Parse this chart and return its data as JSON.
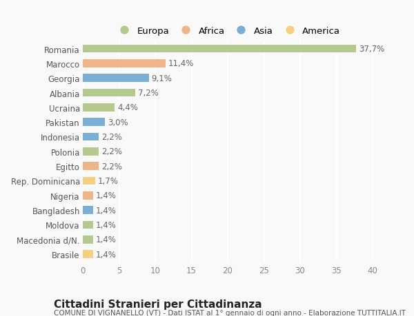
{
  "countries": [
    "Romania",
    "Marocco",
    "Georgia",
    "Albania",
    "Ucraina",
    "Pakistan",
    "Indonesia",
    "Polonia",
    "Egitto",
    "Rep. Dominicana",
    "Nigeria",
    "Bangladesh",
    "Moldova",
    "Macedonia d/N.",
    "Brasile"
  ],
  "values": [
    37.7,
    11.4,
    9.1,
    7.2,
    4.4,
    3.0,
    2.2,
    2.2,
    2.2,
    1.7,
    1.4,
    1.4,
    1.4,
    1.4,
    1.4
  ],
  "labels": [
    "37,7%",
    "11,4%",
    "9,1%",
    "7,2%",
    "4,4%",
    "3,0%",
    "2,2%",
    "2,2%",
    "2,2%",
    "1,7%",
    "1,4%",
    "1,4%",
    "1,4%",
    "1,4%",
    "1,4%"
  ],
  "continents": [
    "Europa",
    "Africa",
    "Asia",
    "Europa",
    "Europa",
    "Asia",
    "Asia",
    "Europa",
    "Africa",
    "America",
    "Africa",
    "Asia",
    "Europa",
    "Europa",
    "America"
  ],
  "continent_colors": {
    "Europa": "#b5c98e",
    "Africa": "#f0b48a",
    "Asia": "#7baed4",
    "America": "#f5d080"
  },
  "legend_order": [
    "Europa",
    "Africa",
    "Asia",
    "America"
  ],
  "xlim": [
    0,
    40
  ],
  "xticks": [
    0,
    5,
    10,
    15,
    20,
    25,
    30,
    35,
    40
  ],
  "title": "Cittadini Stranieri per Cittadinanza",
  "subtitle": "COMUNE DI VIGNANELLO (VT) - Dati ISTAT al 1° gennaio di ogni anno - Elaborazione TUTTITALIA.IT",
  "background_color": "#f9f9f9",
  "grid_color": "#ffffff",
  "bar_height": 0.55,
  "label_fontsize": 8.5,
  "tick_fontsize": 8.5,
  "title_fontsize": 11,
  "subtitle_fontsize": 7.5,
  "legend_fontsize": 9.5
}
